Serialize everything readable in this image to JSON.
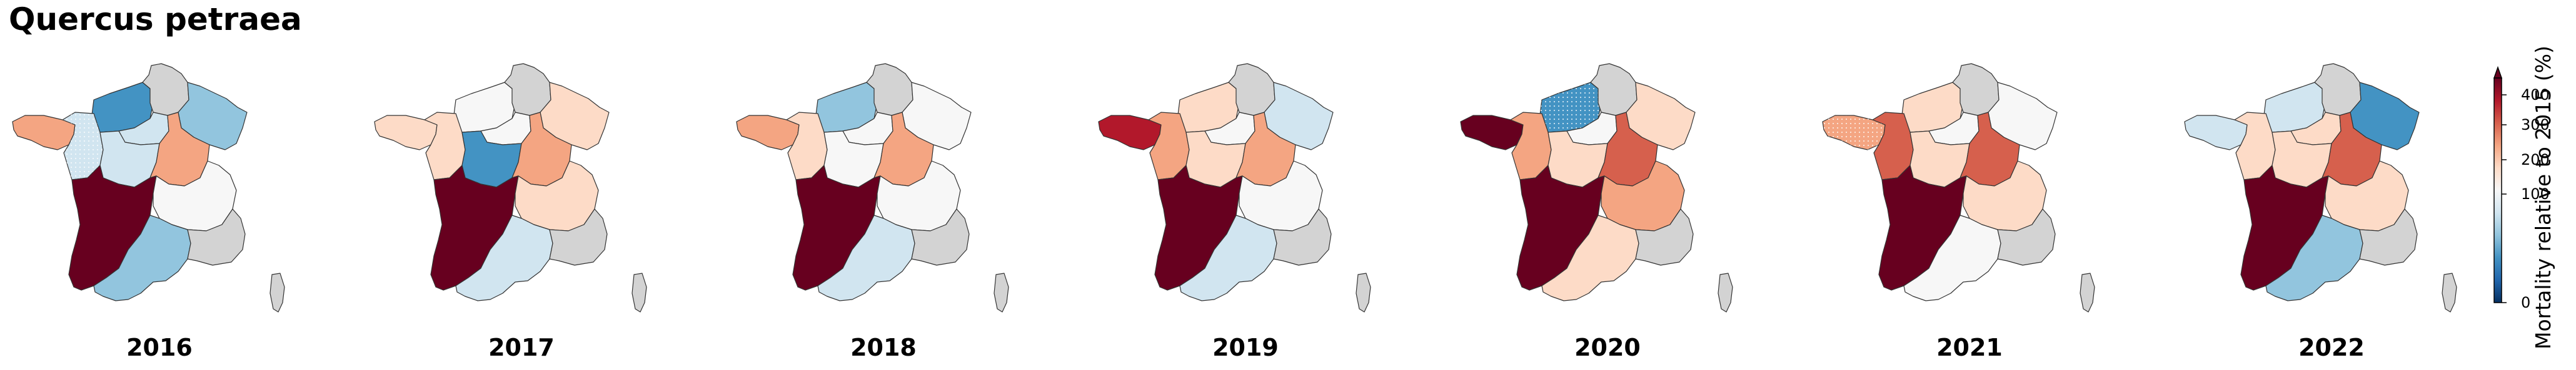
{
  "title": "Quercus petraea",
  "colors": {
    "outside": "#d3d3d3",
    "border": "#333333",
    "scale": [
      "#053061",
      "#2166ac",
      "#4393c3",
      "#92c5de",
      "#d1e5f0",
      "#f7f7f7",
      "#fddbc7",
      "#f4a582",
      "#d6604d",
      "#b2182b",
      "#67001f"
    ]
  },
  "colorbar": {
    "label": "Mortality relative to 2015 (%)",
    "ticks": [
      "0",
      "100",
      "200",
      "300",
      "400"
    ],
    "extend": "max"
  },
  "panels": [
    {
      "year": "2016",
      "regions": {
        "bre": "#f4a582",
        "pdl": "#d1e5f0",
        "nor": "#4393c3",
        "hdf": "outside",
        "ges": "#92c5de",
        "idf": "#d1e5f0",
        "cvl": "#d1e5f0",
        "bfc": "#f4a582",
        "naq": "#67001f",
        "ara": "#f7f7f7",
        "occ": "#92c5de",
        "pac": "outside",
        "cor": "outside"
      }
    },
    {
      "year": "2017",
      "regions": {
        "bre": "#fddbc7",
        "pdl": "#fddbc7",
        "nor": "#f7f7f7",
        "hdf": "outside",
        "ges": "#fddbc7",
        "idf": "#f7f7f7",
        "cvl": "#4393c3",
        "bfc": "#f4a582",
        "naq": "#67001f",
        "ara": "#fddbc7",
        "occ": "#d1e5f0",
        "pac": "outside",
        "cor": "outside"
      }
    },
    {
      "year": "2018",
      "regions": {
        "bre": "#f4a582",
        "pdl": "#fddbc7",
        "nor": "#92c5de",
        "hdf": "outside",
        "ges": "#f7f7f7",
        "idf": "#f7f7f7",
        "cvl": "#f7f7f7",
        "bfc": "#f4a582",
        "naq": "#67001f",
        "ara": "#f7f7f7",
        "occ": "#d1e5f0",
        "pac": "outside",
        "cor": "outside"
      }
    },
    {
      "year": "2019",
      "regions": {
        "bre": "#b2182b",
        "pdl": "#f4a582",
        "nor": "#fddbc7",
        "hdf": "outside",
        "ges": "#d1e5f0",
        "idf": "#f7f7f7",
        "cvl": "#fddbc7",
        "bfc": "#f4a582",
        "naq": "#67001f",
        "ara": "#f7f7f7",
        "occ": "#d1e5f0",
        "pac": "outside",
        "cor": "outside"
      }
    },
    {
      "year": "2020",
      "regions": {
        "bre": "#67001f",
        "pdl": "#f4a582",
        "nor": "#4393c3",
        "hdf": "outside",
        "ges": "#fddbc7",
        "idf": "#f7f7f7",
        "cvl": "#fddbc7",
        "bfc": "#d6604d",
        "naq": "#67001f",
        "ara": "#f4a582",
        "occ": "#fddbc7",
        "pac": "outside",
        "cor": "outside"
      }
    },
    {
      "year": "2021",
      "regions": {
        "bre": "#f4a582",
        "pdl": "#d6604d",
        "nor": "#fddbc7",
        "hdf": "outside",
        "ges": "#f7f7f7",
        "idf": "#f7f7f7",
        "cvl": "#fddbc7",
        "bfc": "#d6604d",
        "naq": "#67001f",
        "ara": "#fddbc7",
        "occ": "#f7f7f7",
        "pac": "outside",
        "cor": "outside"
      }
    },
    {
      "year": "2022",
      "regions": {
        "bre": "#d1e5f0",
        "pdl": "#fddbc7",
        "nor": "#d1e5f0",
        "hdf": "outside",
        "ges": "#4393c3",
        "idf": "#fddbc7",
        "cvl": "#fddbc7",
        "bfc": "#d6604d",
        "naq": "#67001f",
        "ara": "#fddbc7",
        "occ": "#92c5de",
        "pac": "outside",
        "cor": "outside"
      }
    }
  ]
}
